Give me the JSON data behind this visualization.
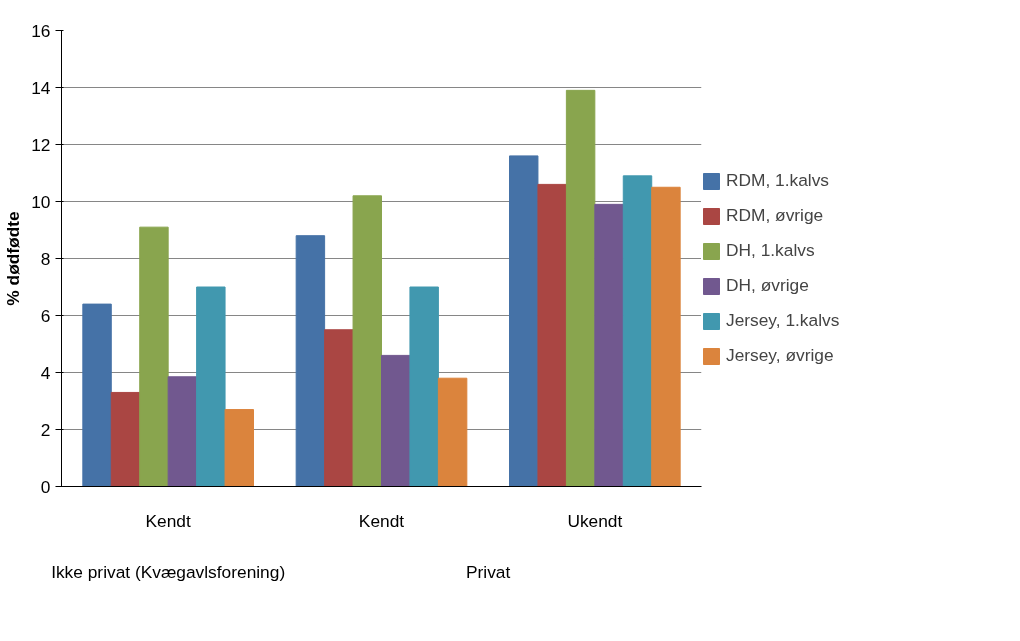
{
  "chart_data": {
    "type": "bar",
    "ylabel": "% dødfødte",
    "categories": [
      "Kendt",
      "Kendt",
      "Ukendt"
    ],
    "annotations": [
      "Ikke privat (Kvægavlsforening)",
      "Privat"
    ],
    "series": [
      {
        "name": "RDM, 1.kalvs",
        "color": "#4572a7",
        "values": [
          6.4,
          8.8,
          11.6
        ]
      },
      {
        "name": "RDM, øvrige",
        "color": "#aa4643",
        "values": [
          3.3,
          5.5,
          10.6
        ]
      },
      {
        "name": "DH, 1.kalvs",
        "color": "#89a54e",
        "values": [
          9.1,
          10.2,
          13.9
        ]
      },
      {
        "name": "DH, øvrige",
        "color": "#71588f",
        "values": [
          3.85,
          4.6,
          9.9
        ]
      },
      {
        "name": "Jersey, 1.kalvs",
        "color": "#4198af",
        "values": [
          7.0,
          7.0,
          10.9
        ]
      },
      {
        "name": "Jersey, øvrige",
        "color": "#db843d",
        "values": [
          2.7,
          3.8,
          10.5
        ]
      }
    ],
    "ylim": [
      0,
      16
    ],
    "yticks": [
      0,
      2,
      4,
      6,
      8,
      10,
      12,
      14,
      16
    ],
    "grid": "y",
    "legend": "right"
  }
}
